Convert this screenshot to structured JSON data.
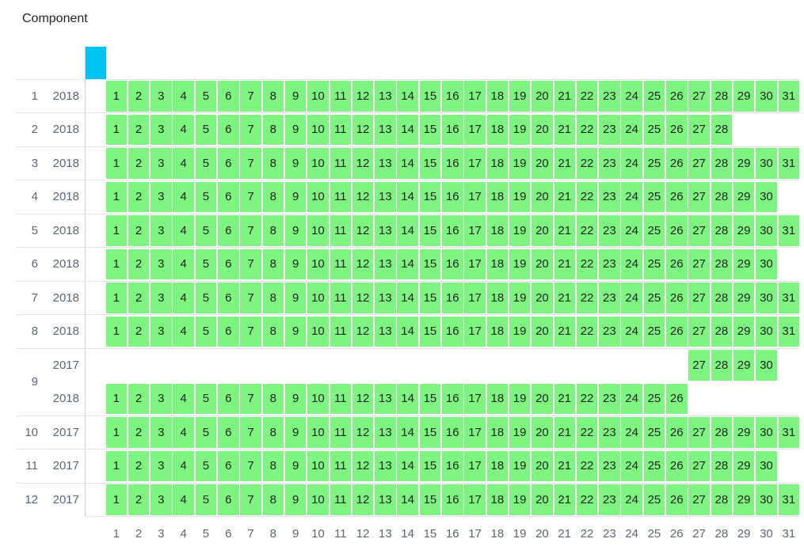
{
  "chart_data": {
    "type": "heatmap",
    "title": "Component",
    "xlabel": "",
    "ylabel": "",
    "x_axis": {
      "min": 1,
      "max": 31
    },
    "x_ticks": [
      1,
      2,
      3,
      4,
      5,
      6,
      7,
      8,
      9,
      10,
      11,
      12,
      13,
      14,
      15,
      16,
      17,
      18,
      19,
      20,
      21,
      22,
      23,
      24,
      25,
      26,
      27,
      28,
      29,
      30,
      31
    ],
    "cell_color": "#7ef581",
    "cell_text_color": "#1e211f",
    "axis_label_color": "#5b6673",
    "gridline_color": "#e2e4e6",
    "highlight_bar": {
      "name": "header-highlight",
      "color": "#00c3f4"
    },
    "row_groups": [
      {
        "label": "1",
        "rows": [
          {
            "year": "2018",
            "day_start": 1,
            "day_end": 31
          }
        ]
      },
      {
        "label": "2",
        "rows": [
          {
            "year": "2018",
            "day_start": 1,
            "day_end": 28
          }
        ]
      },
      {
        "label": "3",
        "rows": [
          {
            "year": "2018",
            "day_start": 1,
            "day_end": 31
          }
        ]
      },
      {
        "label": "4",
        "rows": [
          {
            "year": "2018",
            "day_start": 1,
            "day_end": 30
          }
        ]
      },
      {
        "label": "5",
        "rows": [
          {
            "year": "2018",
            "day_start": 1,
            "day_end": 31
          }
        ]
      },
      {
        "label": "6",
        "rows": [
          {
            "year": "2018",
            "day_start": 1,
            "day_end": 30
          }
        ]
      },
      {
        "label": "7",
        "rows": [
          {
            "year": "2018",
            "day_start": 1,
            "day_end": 31
          }
        ]
      },
      {
        "label": "8",
        "rows": [
          {
            "year": "2018",
            "day_start": 1,
            "day_end": 31
          }
        ]
      },
      {
        "label": "9",
        "rows": [
          {
            "year": "2017",
            "day_start": 27,
            "day_end": 30
          },
          {
            "year": "2018",
            "day_start": 1,
            "day_end": 26
          }
        ]
      },
      {
        "label": "10",
        "rows": [
          {
            "year": "2017",
            "day_start": 1,
            "day_end": 31
          }
        ]
      },
      {
        "label": "11",
        "rows": [
          {
            "year": "2017",
            "day_start": 1,
            "day_end": 30
          }
        ]
      },
      {
        "label": "12",
        "rows": [
          {
            "year": "2017",
            "day_start": 1,
            "day_end": 31
          }
        ]
      }
    ]
  }
}
